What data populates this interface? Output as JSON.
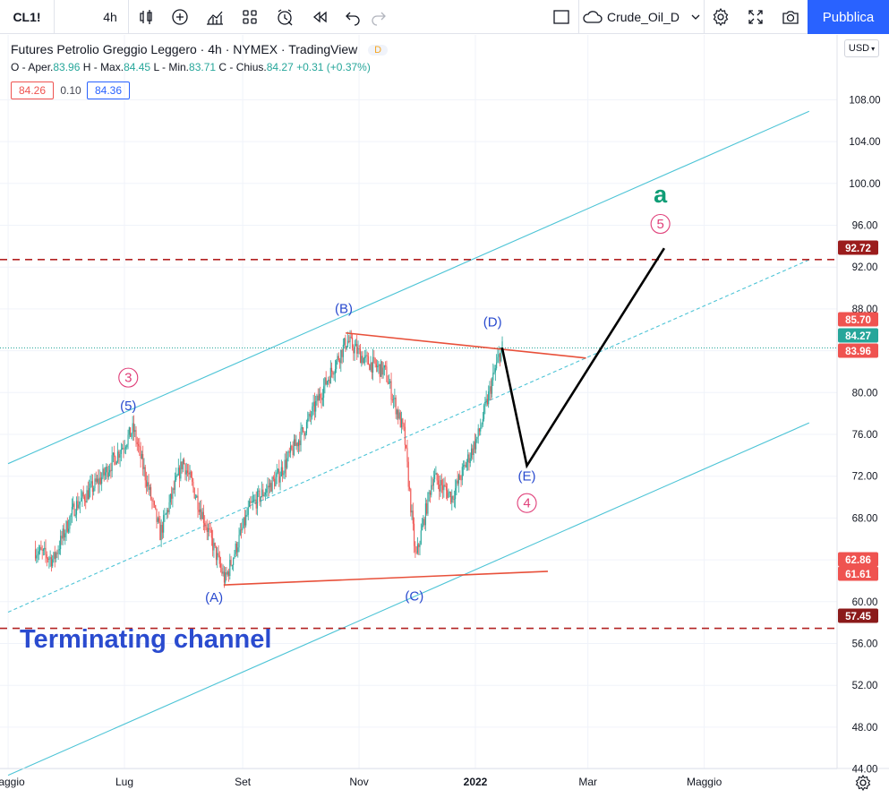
{
  "toolbar": {
    "symbol": "CL1!",
    "interval": "4h",
    "chart_name": "Crude_Oil_D",
    "publish_label": "Pubblica"
  },
  "legend": {
    "title": "Futures Petrolio Greggio Leggero · 4h · NYMEX · TradingView",
    "badge": "D",
    "o_label": "O - Aper.",
    "o": "83.96",
    "h_label": "H - Max.",
    "h": "84.45",
    "l_label": "L - Min.",
    "l": "83.71",
    "c_label": "C - Chius.",
    "c": "84.27",
    "change": "+0.31 (+0.37%)",
    "bid": "84.26",
    "spread": "0.10",
    "ask": "84.36"
  },
  "currency": "USD",
  "colors": {
    "up": "#26a69a",
    "down": "#ef5350",
    "channel": "#4dc4d6",
    "triangle": "#e8503a",
    "dashed_level": "#b22222",
    "wave_blue": "#2a4bcf",
    "wave_pink": "#e0407a",
    "wave_green": "#0f9d76",
    "projection": "#000000"
  },
  "chart_data": {
    "type": "line",
    "title": "Futures Petrolio Greggio Leggero · 4h · NYMEX · TradingView",
    "x_axis_ticks": [
      "aggio",
      "Lug",
      "Set",
      "Nov",
      "2022",
      "Mar",
      "Maggio"
    ],
    "y_axis_ticks": [
      108,
      104,
      100,
      96,
      92,
      88,
      84,
      80,
      76,
      72,
      68,
      64,
      60,
      56,
      52,
      48,
      44
    ],
    "ylim": [
      42.5,
      112
    ],
    "price_series": {
      "name": "CL1! 4h",
      "x": [
        "2021-05-15",
        "2021-05-25",
        "2021-06-05",
        "2021-06-20",
        "2021-07-06",
        "2021-07-20",
        "2021-08-01",
        "2021-08-10",
        "2021-08-23",
        "2021-09-05",
        "2021-09-20",
        "2021-10-05",
        "2021-10-15",
        "2021-10-26",
        "2021-11-05",
        "2021-11-15",
        "2021-11-25",
        "2021-12-01",
        "2021-12-10",
        "2021-12-20",
        "2022-01-03",
        "2022-01-10",
        "2022-01-15"
      ],
      "y": [
        65,
        64,
        69,
        72,
        76.5,
        66.5,
        73.5,
        69,
        62,
        69,
        72,
        77,
        81,
        85,
        83,
        82,
        76,
        64,
        72,
        70,
        76,
        81,
        84.3
      ]
    },
    "levels": [
      {
        "label": "92.72",
        "value": 92.72
      },
      {
        "label": "85.70",
        "value": 85.7
      },
      {
        "label": "84.27",
        "value": 84.27
      },
      {
        "label": "83.96",
        "value": 83.96
      },
      {
        "label": "62.86",
        "value": 62.86
      },
      {
        "label": "61.61",
        "value": 61.61
      },
      {
        "label": "57.45",
        "value": 57.45
      }
    ],
    "wave_labels": [
      "(5)",
      "3",
      "(A)",
      "(B)",
      "(C)",
      "(D)",
      "(E)",
      "4",
      "5",
      "a"
    ],
    "annotation": "Terminating channel",
    "projection": [
      {
        "x": "2022-01-15",
        "y": 84.3
      },
      {
        "x": "2022-01-28",
        "y": 73
      },
      {
        "x": "2022-04-10",
        "y": 93.8
      }
    ]
  }
}
